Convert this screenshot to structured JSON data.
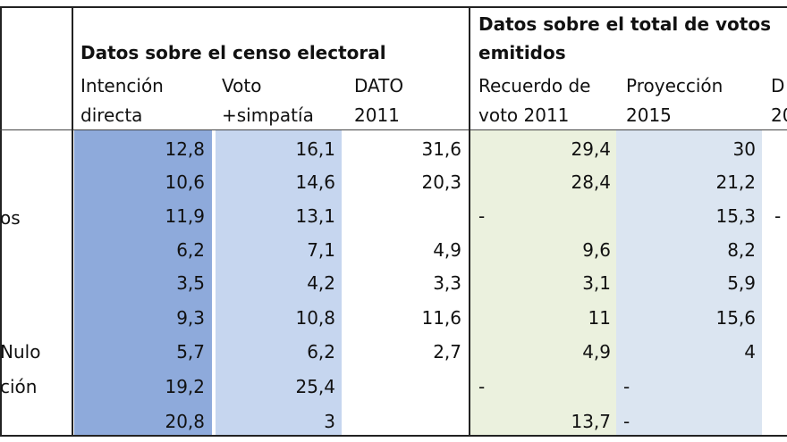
{
  "headers": {
    "group1": "Datos sobre el censo electoral",
    "group2_line1": "Datos sobre el total de votos",
    "group2_line2": "emitidos",
    "cols": [
      {
        "l1": "Intención",
        "l2": "directa"
      },
      {
        "l1": "Voto",
        "l2": "+simpatía"
      },
      {
        "l1": "DATO",
        "l2": "2011"
      },
      {
        "l1": "Recuerdo de",
        "l2": "voto 2011"
      },
      {
        "l1": "Proyección",
        "l2": "2015"
      },
      {
        "l1": "D",
        "l2": "20"
      }
    ]
  },
  "row_labels": [
    "os",
    "Nulo",
    "ción"
  ],
  "rows": [
    {
      "int": "12,8",
      "voto": "16,1",
      "dato": "31,6",
      "rec": "29,4",
      "proy": "30",
      "last": ""
    },
    {
      "int": "10,6",
      "voto": "14,6",
      "dato": "20,3",
      "rec": "28,4",
      "proy": "21,2",
      "last": ""
    },
    {
      "int": "11,9",
      "voto": "13,1",
      "dato": "",
      "rec": "-",
      "proy": "15,3",
      "last": "-"
    },
    {
      "int": "6,2",
      "voto": "7,1",
      "dato": "4,9",
      "rec": "9,6",
      "proy": "8,2",
      "last": ""
    },
    {
      "int": "3,5",
      "voto": "4,2",
      "dato": "3,3",
      "rec": "3,1",
      "proy": "5,9",
      "last": ""
    },
    {
      "int": "9,3",
      "voto": "10,8",
      "dato": "11,6",
      "rec": "11",
      "proy": "15,6",
      "last": ""
    },
    {
      "int": "5,7",
      "voto": "6,2",
      "dato": "2,7",
      "rec": "4,9",
      "proy": "4",
      "last": ""
    },
    {
      "int": "19,2",
      "voto": "25,4",
      "dato": "",
      "rec": "-",
      "proy": "-",
      "last": ""
    },
    {
      "int": "20,8",
      "voto": "3",
      "dato": "",
      "rec": "13,7",
      "proy": "-",
      "last": ""
    }
  ]
}
